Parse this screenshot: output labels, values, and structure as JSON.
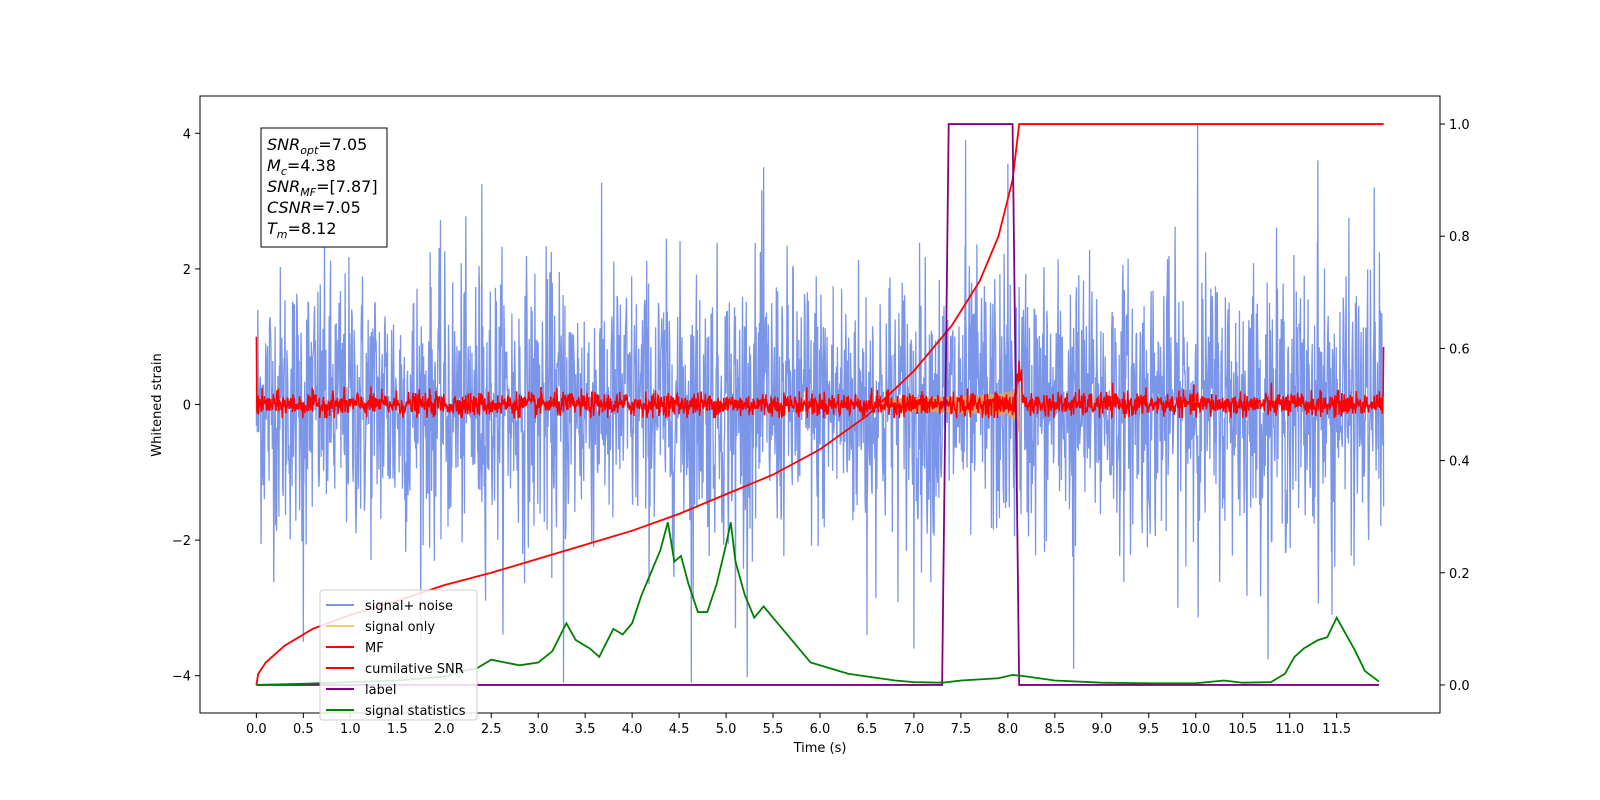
{
  "chart_data": {
    "type": "line",
    "xlabel": "Time (s)",
    "ylabel": "Whitened strain",
    "xlim": [
      -0.6,
      12.6
    ],
    "ylim_left": [
      -4.55,
      4.55
    ],
    "ylim_right": [
      -0.05,
      1.05
    ],
    "x_ticks": [
      0.0,
      0.5,
      1.0,
      1.5,
      2.0,
      2.5,
      3.0,
      3.5,
      4.0,
      4.5,
      5.0,
      5.5,
      6.0,
      6.5,
      7.0,
      7.5,
      8.0,
      8.5,
      9.0,
      9.5,
      10.0,
      10.5,
      11.0,
      11.5
    ],
    "x_tick_labels": [
      "0.0",
      "0.5",
      "1.0",
      "1.5",
      "2.0",
      "2.5",
      "3.0",
      "3.5",
      "4.0",
      "4.5",
      "5.0",
      "5.5",
      "6.0",
      "6.5",
      "7.0",
      "7.5",
      "8.0",
      "8.5",
      "9.0",
      "9.5",
      "10.0",
      "10.5",
      "11.0",
      "11.5"
    ],
    "y_left_ticks": [
      -4,
      -2,
      0,
      2,
      4
    ],
    "y_left_tick_labels": [
      "−4",
      "−2",
      "0",
      "2",
      "4"
    ],
    "y_right_ticks": [
      0.0,
      0.2,
      0.4,
      0.6,
      0.8,
      1.0
    ],
    "y_right_tick_labels": [
      "0.0",
      "0.2",
      "0.4",
      "0.6",
      "0.8",
      "1.0"
    ],
    "grid": false,
    "legend_position": "lower-left",
    "annotation": {
      "lines": [
        {
          "main": "SNR",
          "sub": "opt",
          "value": "=7.05"
        },
        {
          "main": "M",
          "sub": "c",
          "value": "=4.38"
        },
        {
          "main": "SNR",
          "sub": "MF",
          "value": "=[7.87]"
        },
        {
          "main": "CSNR",
          "sub": "",
          "value": "=7.05"
        },
        {
          "main": "T",
          "sub": "m",
          "value": "=8.12"
        }
      ]
    },
    "series": [
      {
        "name": "signal+ noise",
        "color": "#7b96e8",
        "axis": "left",
        "kind": "noise",
        "x_range": [
          0.0,
          12.0
        ],
        "amplitude_sd": 1.0,
        "max": 4.15,
        "min": -4.1,
        "spikes": [
          [
            10.02,
            4.15
          ],
          [
            7.55,
            3.9
          ],
          [
            8.0,
            3.55
          ],
          [
            11.3,
            3.6
          ],
          [
            3.27,
            -4.1
          ],
          [
            4.63,
            -4.1
          ],
          [
            8.7,
            -3.9
          ],
          [
            0.5,
            -3.5
          ],
          [
            7.0,
            -3.6
          ],
          [
            5.1,
            -3.3
          ],
          [
            11.45,
            -3.1
          ],
          [
            6.5,
            -3.4
          ],
          [
            2.4,
            3.25
          ],
          [
            5.4,
            3.5
          ],
          [
            11.9,
            3.2
          ]
        ]
      },
      {
        "name": "signal only",
        "color": "#f0d060",
        "axis": "left",
        "kind": "chirp",
        "x_range": [
          6.5,
          8.12
        ],
        "peak_amplitude": 0.45
      },
      {
        "name": "MF",
        "color": "#ff0000",
        "axis": "left",
        "kind": "matched-filter",
        "x_range": [
          0.0,
          12.0
        ],
        "noise_sd": 0.09,
        "edge_start": 1.0,
        "edge_end": 0.85,
        "peak_time": 8.12,
        "peak_value": 0.55
      },
      {
        "name": "cumilative SNR",
        "color": "#ff0000",
        "axis": "right",
        "kind": "cumulative",
        "x": [
          0.0,
          0.02,
          0.1,
          0.3,
          0.6,
          1.0,
          1.5,
          2.0,
          2.5,
          3.0,
          3.5,
          4.0,
          4.5,
          5.0,
          5.5,
          6.0,
          6.5,
          7.0,
          7.4,
          7.7,
          7.9,
          8.05,
          8.12,
          12.0
        ],
        "y": [
          0.0,
          0.02,
          0.04,
          0.07,
          0.1,
          0.125,
          0.15,
          0.178,
          0.2,
          0.225,
          0.25,
          0.275,
          0.305,
          0.34,
          0.375,
          0.42,
          0.48,
          0.56,
          0.64,
          0.72,
          0.8,
          0.9,
          1.0,
          1.0
        ]
      },
      {
        "name": "label",
        "color": "#800080",
        "axis": "right",
        "kind": "step",
        "x": [
          0.0,
          7.3,
          7.37,
          8.05,
          8.12,
          11.95
        ],
        "y": [
          0.0,
          0.0,
          1.0,
          1.0,
          0.0,
          0.0
        ]
      },
      {
        "name": "signal statistics",
        "color": "#008000",
        "axis": "right",
        "kind": "line",
        "x": [
          0.0,
          0.5,
          1.0,
          1.5,
          2.0,
          2.2,
          2.35,
          2.5,
          2.65,
          2.8,
          3.0,
          3.15,
          3.3,
          3.4,
          3.55,
          3.65,
          3.8,
          3.9,
          4.0,
          4.1,
          4.2,
          4.3,
          4.38,
          4.45,
          4.52,
          4.6,
          4.7,
          4.8,
          4.9,
          5.0,
          5.05,
          5.1,
          5.2,
          5.3,
          5.4,
          5.5,
          5.7,
          5.9,
          6.1,
          6.3,
          6.5,
          6.8,
          7.0,
          7.3,
          7.5,
          7.7,
          7.9,
          8.05,
          8.2,
          8.5,
          9.0,
          9.5,
          10.0,
          10.3,
          10.5,
          10.8,
          10.95,
          11.05,
          11.15,
          11.3,
          11.4,
          11.5,
          11.6,
          11.7,
          11.8,
          11.95
        ],
        "y": [
          0.0,
          0.002,
          0.005,
          0.008,
          0.015,
          0.025,
          0.03,
          0.045,
          0.04,
          0.035,
          0.04,
          0.06,
          0.11,
          0.08,
          0.065,
          0.05,
          0.1,
          0.09,
          0.11,
          0.16,
          0.2,
          0.24,
          0.29,
          0.22,
          0.23,
          0.18,
          0.13,
          0.13,
          0.18,
          0.25,
          0.29,
          0.22,
          0.16,
          0.12,
          0.14,
          0.12,
          0.08,
          0.04,
          0.03,
          0.02,
          0.015,
          0.008,
          0.005,
          0.004,
          0.008,
          0.01,
          0.012,
          0.018,
          0.015,
          0.008,
          0.004,
          0.003,
          0.003,
          0.008,
          0.004,
          0.005,
          0.02,
          0.05,
          0.065,
          0.08,
          0.085,
          0.12,
          0.09,
          0.06,
          0.025,
          0.006
        ]
      }
    ]
  },
  "legend": {
    "items": [
      {
        "label": "signal+ noise",
        "color": "#7b96e8"
      },
      {
        "label": "signal only",
        "color": "#f0d060"
      },
      {
        "label": "MF",
        "color": "#ff0000"
      },
      {
        "label": "cumilative SNR",
        "color": "#ff0000"
      },
      {
        "label": "label",
        "color": "#800080"
      },
      {
        "label": "signal statistics",
        "color": "#008000"
      }
    ]
  }
}
